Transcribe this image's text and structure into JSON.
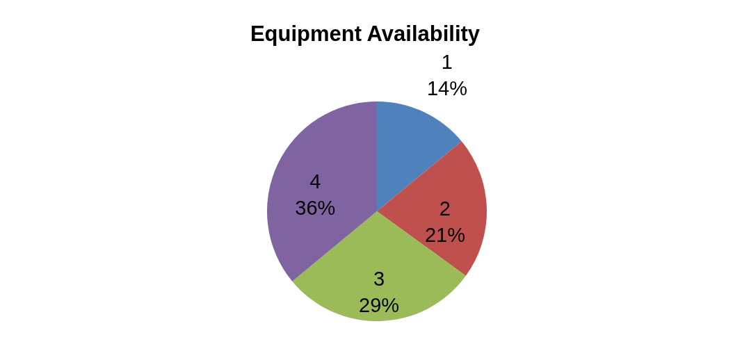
{
  "chart_data": {
    "type": "pie",
    "title": "Equipment Availability",
    "categories": [
      "1",
      "2",
      "3",
      "4"
    ],
    "values": [
      14,
      21,
      29,
      36
    ],
    "value_labels": [
      "14%",
      "21%",
      "29%",
      "36%"
    ],
    "colors": [
      "#4f81bd",
      "#c0504d",
      "#9bbb59",
      "#8064a2"
    ]
  }
}
